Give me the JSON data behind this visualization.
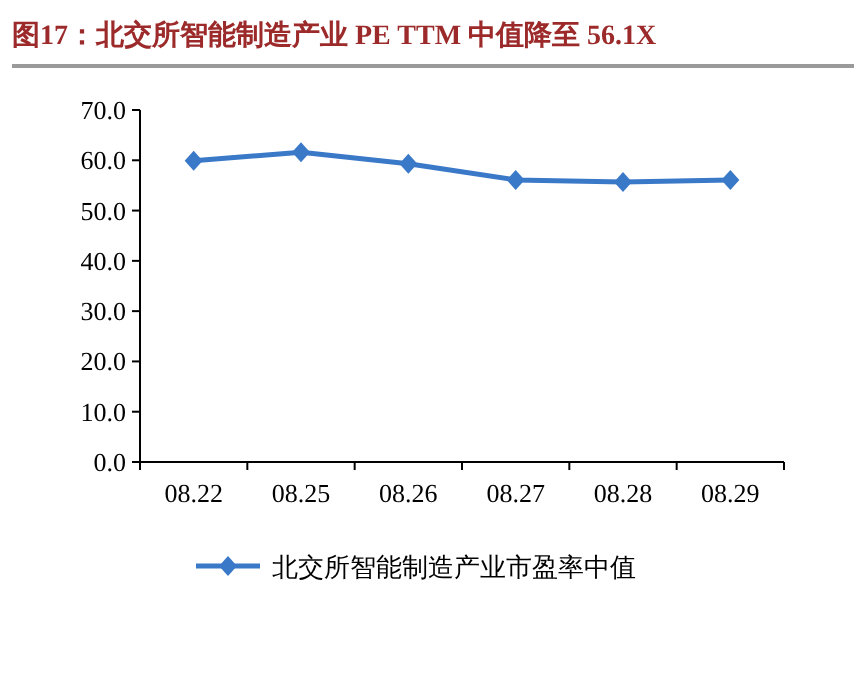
{
  "chart_data": {
    "type": "line",
    "title": "图17：北交所智能制造产业 PE TTM 中值降至 56.1X",
    "categories": [
      "08.22",
      "08.25",
      "08.26",
      "08.27",
      "08.28",
      "08.29"
    ],
    "series": [
      {
        "name": "北交所智能制造产业市盈率中值",
        "color": "#3a78c8",
        "values": [
          59.9,
          61.6,
          59.3,
          56.1,
          55.7,
          56.1
        ]
      }
    ],
    "ylim": [
      0,
      70
    ],
    "yticks": [
      {
        "value": 0,
        "label": "0.0"
      },
      {
        "value": 10,
        "label": "10.0"
      },
      {
        "value": 20,
        "label": "20.0"
      },
      {
        "value": 30,
        "label": "30.0"
      },
      {
        "value": 40,
        "label": "40.0"
      },
      {
        "value": 50,
        "label": "50.0"
      },
      {
        "value": 60,
        "label": "60.0"
      },
      {
        "value": 70,
        "label": "70.0"
      }
    ],
    "marker": "diamond",
    "legend": "bottom",
    "grid": false
  }
}
